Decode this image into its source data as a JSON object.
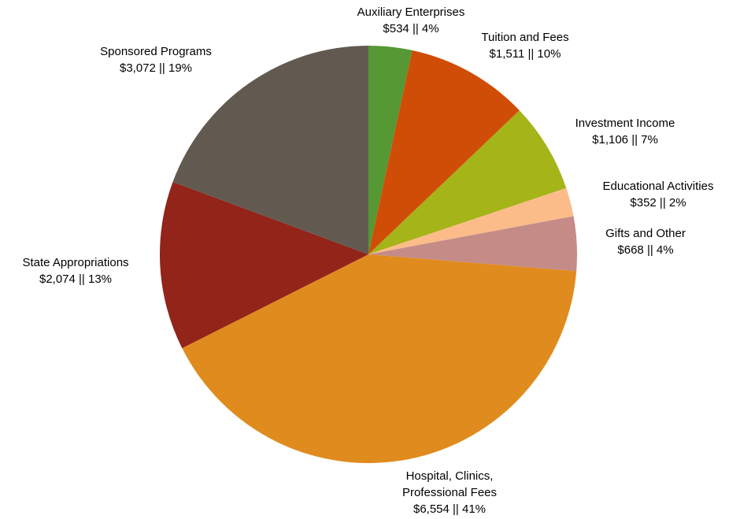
{
  "chart_data": {
    "type": "pie",
    "categories": [
      "Auxiliary Enterprises",
      "Tuition and Fees",
      "Investment Income",
      "Educational Activities",
      "Gifts and Other",
      "Hospital, Clinics, Professional Fees",
      "State Appropriations",
      "Sponsored Programs"
    ],
    "values": [
      534,
      1511,
      1106,
      352,
      668,
      6554,
      2074,
      3072
    ],
    "value_labels": [
      "$534 || 4%",
      "$1,511 || 10%",
      "$1,106 || 7%",
      "$352 || 2%",
      "$668 || 4%",
      "$6,554 || 41%",
      "$2,074 || 13%",
      "$3,072 || 19%"
    ],
    "colors": [
      "#569834",
      "#d04d07",
      "#a5b418",
      "#fbbc8a",
      "#c48b87",
      "#e08b1e",
      "#922419",
      "#625a50"
    ]
  }
}
